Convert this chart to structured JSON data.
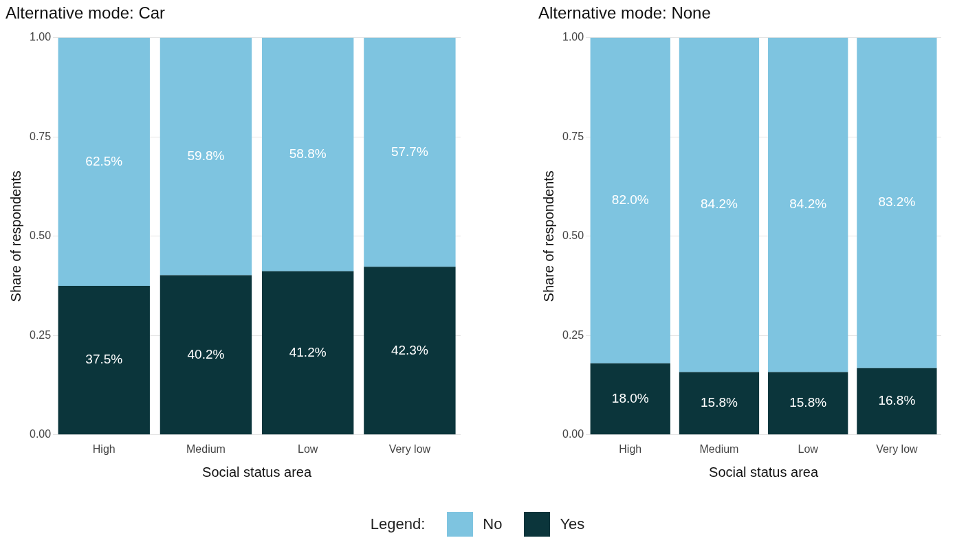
{
  "chart_data": [
    {
      "type": "bar",
      "title": "Alternative mode: Car",
      "xlabel": "Social status area",
      "ylabel": "Share of respondents",
      "categories": [
        "High",
        "Medium",
        "Low",
        "Very low"
      ],
      "stacked": true,
      "ylim": [
        0,
        1
      ],
      "yticks": [
        {
          "value": 0,
          "label": "0.00"
        },
        {
          "value": 0.25,
          "label": "0.25"
        },
        {
          "value": 0.5,
          "label": "0.50"
        },
        {
          "value": 0.75,
          "label": "0.75"
        },
        {
          "value": 1,
          "label": "1.00"
        }
      ],
      "grid": true,
      "legend": "bottom",
      "legend_title": "Legend:",
      "series": [
        {
          "name": "Yes",
          "color": "#0b353b",
          "values": [
            0.375,
            0.402,
            0.412,
            0.423
          ],
          "value_labels": [
            "37.5%",
            "40.2%",
            "41.2%",
            "42.3%"
          ]
        },
        {
          "name": "No",
          "color": "#7ec4e0",
          "values": [
            0.625,
            0.598,
            0.588,
            0.577
          ],
          "value_labels": [
            "62.5%",
            "59.8%",
            "58.8%",
            "57.7%"
          ]
        }
      ]
    },
    {
      "type": "bar",
      "title": "Alternative mode: None",
      "xlabel": "Social status area",
      "ylabel": "Share of respondents",
      "categories": [
        "High",
        "Medium",
        "Low",
        "Very low"
      ],
      "stacked": true,
      "ylim": [
        0,
        1
      ],
      "yticks": [
        {
          "value": 0,
          "label": "0.00"
        },
        {
          "value": 0.25,
          "label": "0.25"
        },
        {
          "value": 0.5,
          "label": "0.50"
        },
        {
          "value": 0.75,
          "label": "0.75"
        },
        {
          "value": 1,
          "label": "1.00"
        }
      ],
      "grid": true,
      "series": [
        {
          "color": "#0b353b",
          "values": [
            0.18,
            0.158,
            0.158,
            0.168
          ],
          "value_labels": [
            "18.0%",
            "15.8%",
            "15.8%",
            "16.8%"
          ]
        },
        {
          "color": "#7ec4e0",
          "values": [
            0.82,
            0.842,
            0.842,
            0.832
          ],
          "value_labels": [
            "82.0%",
            "84.2%",
            "84.2%",
            "83.2%"
          ]
        }
      ]
    }
  ]
}
